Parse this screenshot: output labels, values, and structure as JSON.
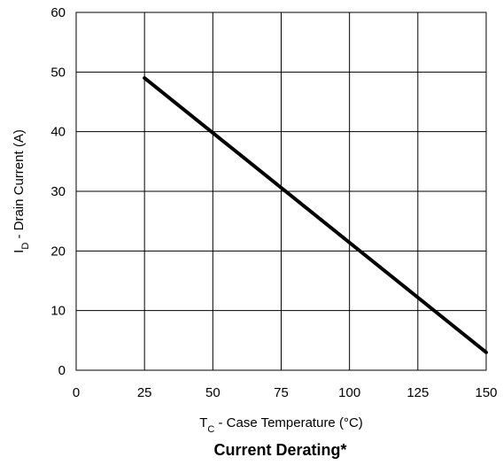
{
  "chart_data": {
    "type": "line",
    "title": "Current Derating*",
    "xlabel": {
      "main": "T",
      "sub": "C",
      "rest": " - Case Temperature (°C)"
    },
    "ylabel": {
      "main": "I",
      "sub": "D",
      "rest": " - Drain Current (A)"
    },
    "xlim": [
      0,
      150
    ],
    "ylim": [
      0,
      60
    ],
    "xticks": [
      0,
      25,
      50,
      75,
      100,
      125,
      150
    ],
    "yticks": [
      0,
      10,
      20,
      30,
      40,
      50,
      60
    ],
    "grid": true,
    "series": [
      {
        "x": [
          25,
          150
        ],
        "y": [
          49,
          3
        ],
        "color": "#000000"
      }
    ]
  }
}
